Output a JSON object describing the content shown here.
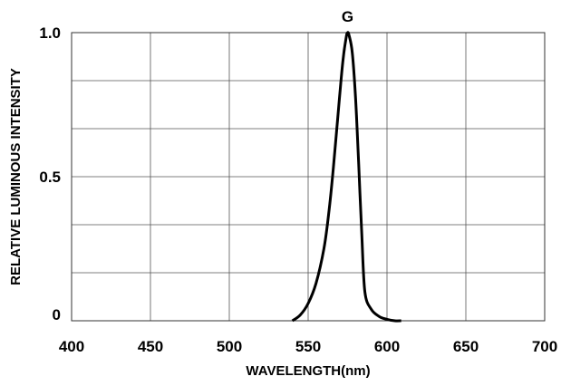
{
  "chart_data": {
    "type": "line",
    "title": "",
    "xlabel": "WAVELENGTH(nm)",
    "ylabel": "RELATIVE LUMINOUS INTENSITY",
    "xlim": [
      400,
      700
    ],
    "ylim": [
      0,
      1.0
    ],
    "x_ticks": [
      "400",
      "450",
      "500",
      "550",
      "600",
      "650",
      "700"
    ],
    "y_ticks": [
      "0",
      "0.5",
      "1.0"
    ],
    "grid": true,
    "series": [
      {
        "name": "G",
        "color": "#000000",
        "x": [
          540,
          545,
          550,
          555,
          560,
          563,
          566,
          569,
          572,
          574,
          575,
          576,
          578,
          580,
          582,
          584,
          586,
          590,
          595,
          600,
          605,
          609
        ],
        "y": [
          0.0,
          0.02,
          0.06,
          0.13,
          0.25,
          0.37,
          0.53,
          0.72,
          0.9,
          0.98,
          1.0,
          0.99,
          0.93,
          0.78,
          0.55,
          0.3,
          0.1,
          0.04,
          0.015,
          0.005,
          0.0,
          0.0
        ]
      }
    ]
  }
}
